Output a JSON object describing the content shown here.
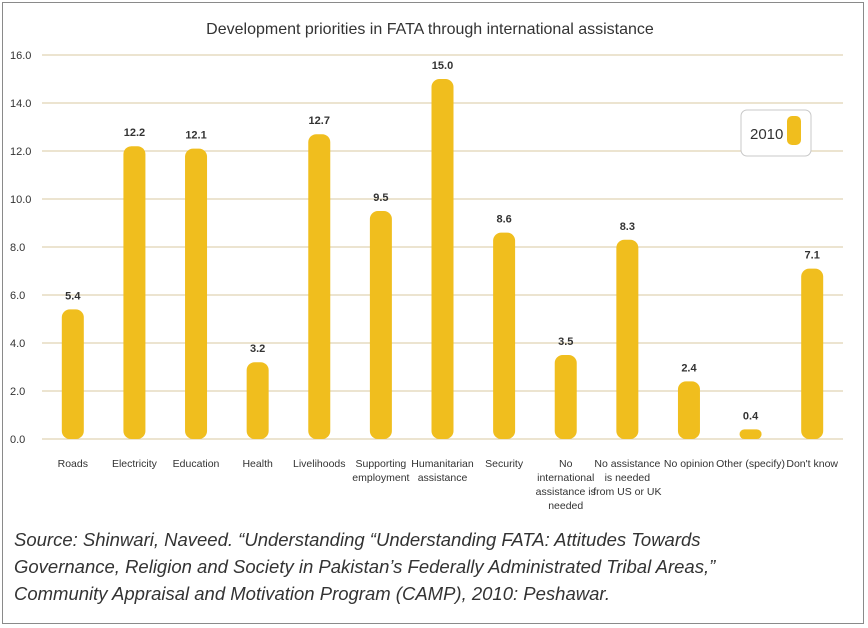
{
  "chart_data": {
    "type": "bar",
    "title": "Development priorities in FATA through international assistance",
    "categories": [
      [
        "Roads"
      ],
      [
        "Electricity"
      ],
      [
        "Education"
      ],
      [
        "Health"
      ],
      [
        "Livelihoods"
      ],
      [
        "Supporting",
        "employment"
      ],
      [
        "Humanitarian",
        "assistance"
      ],
      [
        "Security"
      ],
      [
        "No",
        "international",
        "assistance is",
        "needed"
      ],
      [
        "No assistance",
        "is needed",
        "from US or UK"
      ],
      [
        "No opinion"
      ],
      [
        "Other (specify)"
      ],
      [
        "Don't know"
      ]
    ],
    "series": [
      {
        "name": "2010",
        "values": [
          5.4,
          12.2,
          12.1,
          3.2,
          12.7,
          9.5,
          15.0,
          8.6,
          3.5,
          8.3,
          2.4,
          0.4,
          7.1
        ]
      }
    ],
    "value_labels": [
      "5.4",
      "12.2",
      "12.1",
      "3.2",
      "12.7",
      "9.5",
      "15.0",
      "8.6",
      "3.5",
      "8.3",
      "2.4",
      "0.4",
      "7.1"
    ],
    "yticks": [
      "0.0",
      "2.0",
      "4.0",
      "6.0",
      "8.0",
      "10.0",
      "12.0",
      "14.0",
      "16.0"
    ],
    "ylim": [
      0,
      16
    ],
    "grid": true,
    "legend": "top-right",
    "bar_color": "#F0BE1E",
    "grid_color": "#D9C9A0"
  },
  "caption": {
    "line1": "Source: Shinwari, Naveed. “Understanding “Understanding FATA: Attitudes Towards",
    "line2": "Governance, Religion and Society in Pakistan’s Federally Administrated Tribal Areas,”",
    "line3": "Community Appraisal and Motivation Program (CAMP), 2010:  Peshawar."
  }
}
